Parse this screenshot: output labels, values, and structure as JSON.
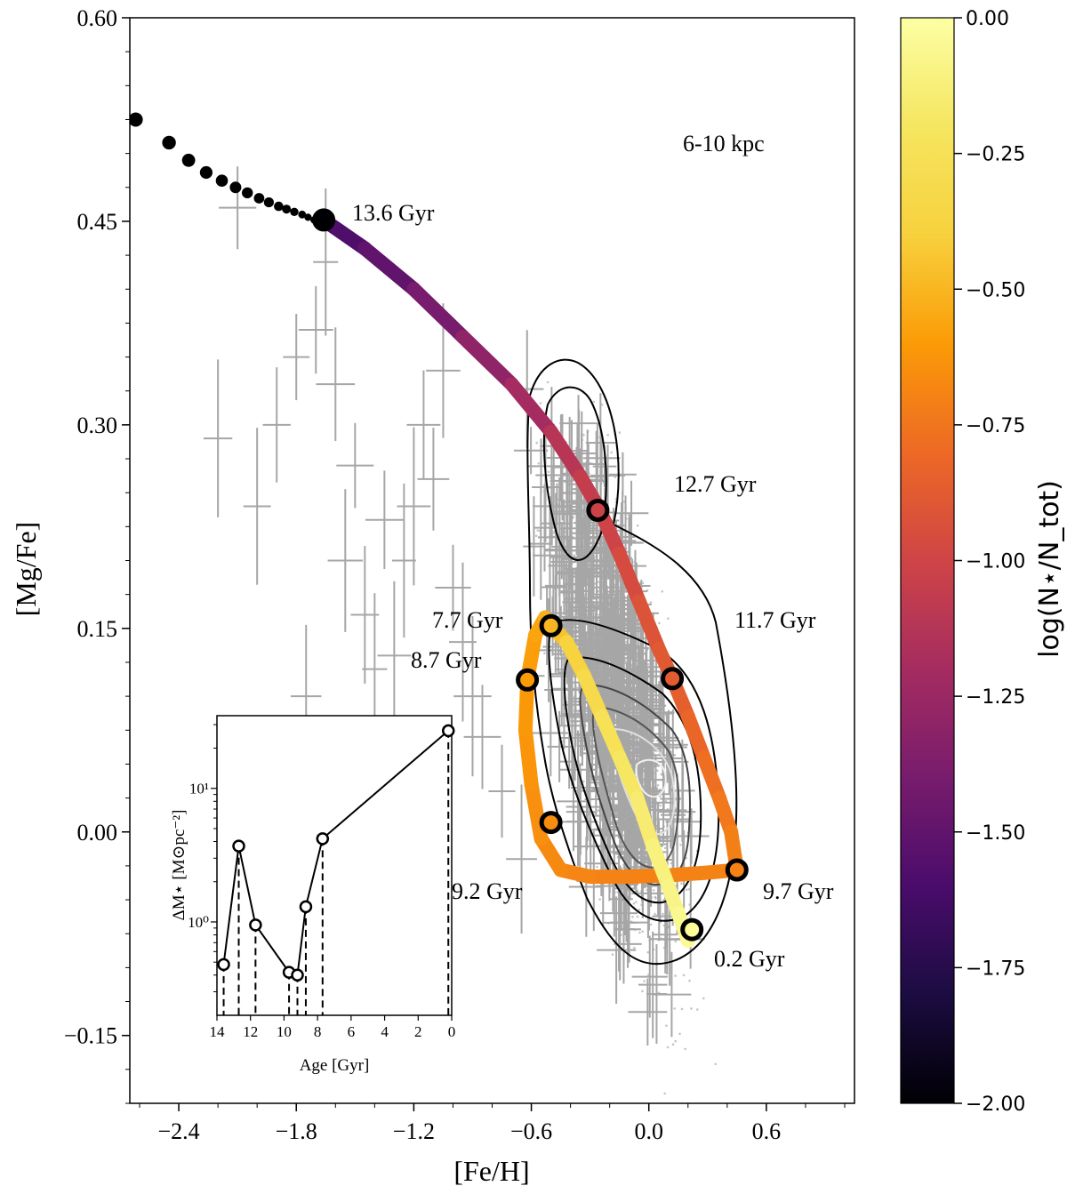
{
  "chart_data": [
    {
      "type": "scatter",
      "title": "",
      "xlabel": "[Fe/H]",
      "ylabel": "[Mg/Fe]",
      "xlim": [
        -2.65,
        1.05
      ],
      "ylim": [
        -0.2,
        0.6
      ],
      "x_ticks": [
        -2.4,
        -1.8,
        -1.2,
        -0.6,
        0.0,
        0.6
      ],
      "x_tick_labels": [
        "−2.4",
        "−1.8",
        "−1.2",
        "−0.6",
        "0.0",
        "0.6"
      ],
      "y_ticks": [
        -0.15,
        0.0,
        0.15,
        0.3,
        0.45,
        0.6
      ],
      "y_tick_labels": [
        "−0.15",
        "0.00",
        "0.15",
        "0.30",
        "0.45",
        "0.60"
      ],
      "region_label": "6-10 kpc",
      "early_points": {
        "name": "early model steps",
        "x": [
          -2.62,
          -2.45,
          -2.35,
          -2.26,
          -2.18,
          -2.11,
          -2.05,
          -1.99,
          -1.94,
          -1.89,
          -1.85,
          -1.81,
          -1.77,
          -1.74,
          -1.71
        ],
        "y": [
          0.525,
          0.508,
          0.495,
          0.486,
          0.48,
          0.475,
          0.471,
          0.467,
          0.464,
          0.461,
          0.459,
          0.457,
          0.455,
          0.453,
          0.451
        ]
      },
      "track": {
        "name": "chemical evolution track",
        "x": [
          -1.65,
          -1.45,
          -1.2,
          -0.95,
          -0.7,
          -0.5,
          -0.35,
          -0.25,
          -0.15,
          -0.05,
          0.05,
          0.12,
          0.2,
          0.28,
          0.36,
          0.42,
          0.45,
          0.3,
          0.1,
          -0.1,
          -0.3,
          -0.45,
          -0.55,
          -0.6,
          -0.63,
          -0.62,
          -0.58,
          -0.53,
          -0.5,
          -0.42,
          -0.33,
          -0.24,
          -0.15,
          -0.06,
          0.02,
          0.1,
          0.15,
          0.2,
          0.22
        ],
        "y": [
          0.45,
          0.43,
          0.4,
          0.365,
          0.33,
          0.295,
          0.262,
          0.237,
          0.205,
          0.17,
          0.135,
          0.113,
          0.085,
          0.055,
          0.025,
          0.0,
          -0.028,
          -0.03,
          -0.032,
          -0.033,
          -0.033,
          -0.028,
          -0.005,
          0.035,
          0.075,
          0.112,
          0.145,
          0.158,
          0.152,
          0.14,
          0.115,
          0.085,
          0.055,
          0.025,
          -0.01,
          -0.04,
          -0.06,
          -0.08,
          -0.072
        ],
        "log_n": [
          -1.6,
          -1.55,
          -1.45,
          -1.35,
          -1.25,
          -1.15,
          -1.08,
          -1.03,
          -0.98,
          -0.94,
          -0.9,
          -0.87,
          -0.84,
          -0.8,
          -0.76,
          -0.72,
          -0.7,
          -0.7,
          -0.7,
          -0.7,
          -0.7,
          -0.68,
          -0.66,
          -0.64,
          -0.62,
          -0.6,
          -0.58,
          -0.55,
          -0.5,
          -0.42,
          -0.35,
          -0.28,
          -0.22,
          -0.17,
          -0.13,
          -0.1,
          -0.07,
          -0.05,
          -0.03
        ]
      },
      "age_markers": [
        {
          "label": "13.6 Gyr",
          "x": -1.66,
          "y": 0.451,
          "log_n": -2.0
        },
        {
          "label": "12.7 Gyr",
          "x": -0.26,
          "y": 0.237,
          "log_n": -1.02
        },
        {
          "label": "11.7 Gyr",
          "x": 0.12,
          "y": 0.113,
          "log_n": -0.87
        },
        {
          "label": "9.7 Gyr",
          "x": 0.45,
          "y": -0.028,
          "log_n": -0.7
        },
        {
          "label": "9.2 Gyr",
          "x": -0.5,
          "y": 0.007,
          "log_n": -0.66
        },
        {
          "label": "8.7 Gyr",
          "x": -0.62,
          "y": 0.112,
          "log_n": -0.6
        },
        {
          "label": "7.7 Gyr",
          "x": -0.5,
          "y": 0.152,
          "log_n": -0.5
        },
        {
          "label": "0.2 Gyr",
          "x": 0.22,
          "y": -0.072,
          "log_n": -0.03
        }
      ],
      "observed_errorbar_stars": {
        "name": "observed stars with errors (sample)",
        "x": [
          -2.2,
          -2.0,
          -1.9,
          -1.75,
          -1.6,
          -1.5,
          -1.35,
          -1.25,
          -1.1,
          -1.0,
          -2.1,
          -1.7,
          -1.55,
          -1.45,
          -1.3,
          -1.15,
          -0.95,
          -0.85,
          -0.75,
          -0.65,
          -1.8,
          -1.65,
          -1.4,
          -1.2,
          -1.05,
          -0.9
        ],
        "y": [
          0.29,
          0.24,
          0.3,
          0.1,
          0.33,
          0.27,
          0.23,
          0.2,
          0.26,
          0.18,
          0.46,
          0.37,
          0.2,
          0.16,
          0.13,
          0.3,
          0.14,
          0.07,
          0.03,
          -0.02,
          0.35,
          0.42,
          0.12,
          0.24,
          0.34,
          0.1
        ]
      },
      "colorbar": {
        "label": "log(N⋆/N_tot)",
        "range": [
          -2.0,
          0.0
        ],
        "ticks": [
          0.0,
          -0.25,
          -0.5,
          -0.75,
          -1.0,
          -1.25,
          -1.5,
          -1.75,
          -2.0
        ],
        "tick_labels": [
          "0.00",
          "−0.25",
          "−0.50",
          "−0.75",
          "−1.00",
          "−1.25",
          "−1.50",
          "−1.75",
          "−2.00"
        ],
        "colormap": "inferno"
      }
    },
    {
      "type": "line",
      "title": "inset",
      "xlabel": "Age [Gyr]",
      "ylabel": "ΔM⋆ [M⊙pc⁻²]",
      "xlim": [
        14,
        0
      ],
      "ylim_log": [
        0.2,
        35
      ],
      "x_ticks": [
        14,
        12,
        10,
        8,
        6,
        4,
        2,
        0
      ],
      "x_tick_labels": [
        "14",
        "12",
        "10",
        "8",
        "6",
        "4",
        "2",
        "0"
      ],
      "y_tick_labels": [
        "10⁰",
        "10¹"
      ],
      "x": [
        13.6,
        12.7,
        11.7,
        9.7,
        9.2,
        8.7,
        7.7,
        0.2
      ],
      "values": [
        0.48,
        3.7,
        0.95,
        0.42,
        0.4,
        1.3,
        4.2,
        27
      ]
    }
  ],
  "colors": {
    "errorbar": "#a6a6a6",
    "density_points": "#8c8c8c",
    "contour_outer": "#000000",
    "contour_inner": "#e6e6e6"
  }
}
